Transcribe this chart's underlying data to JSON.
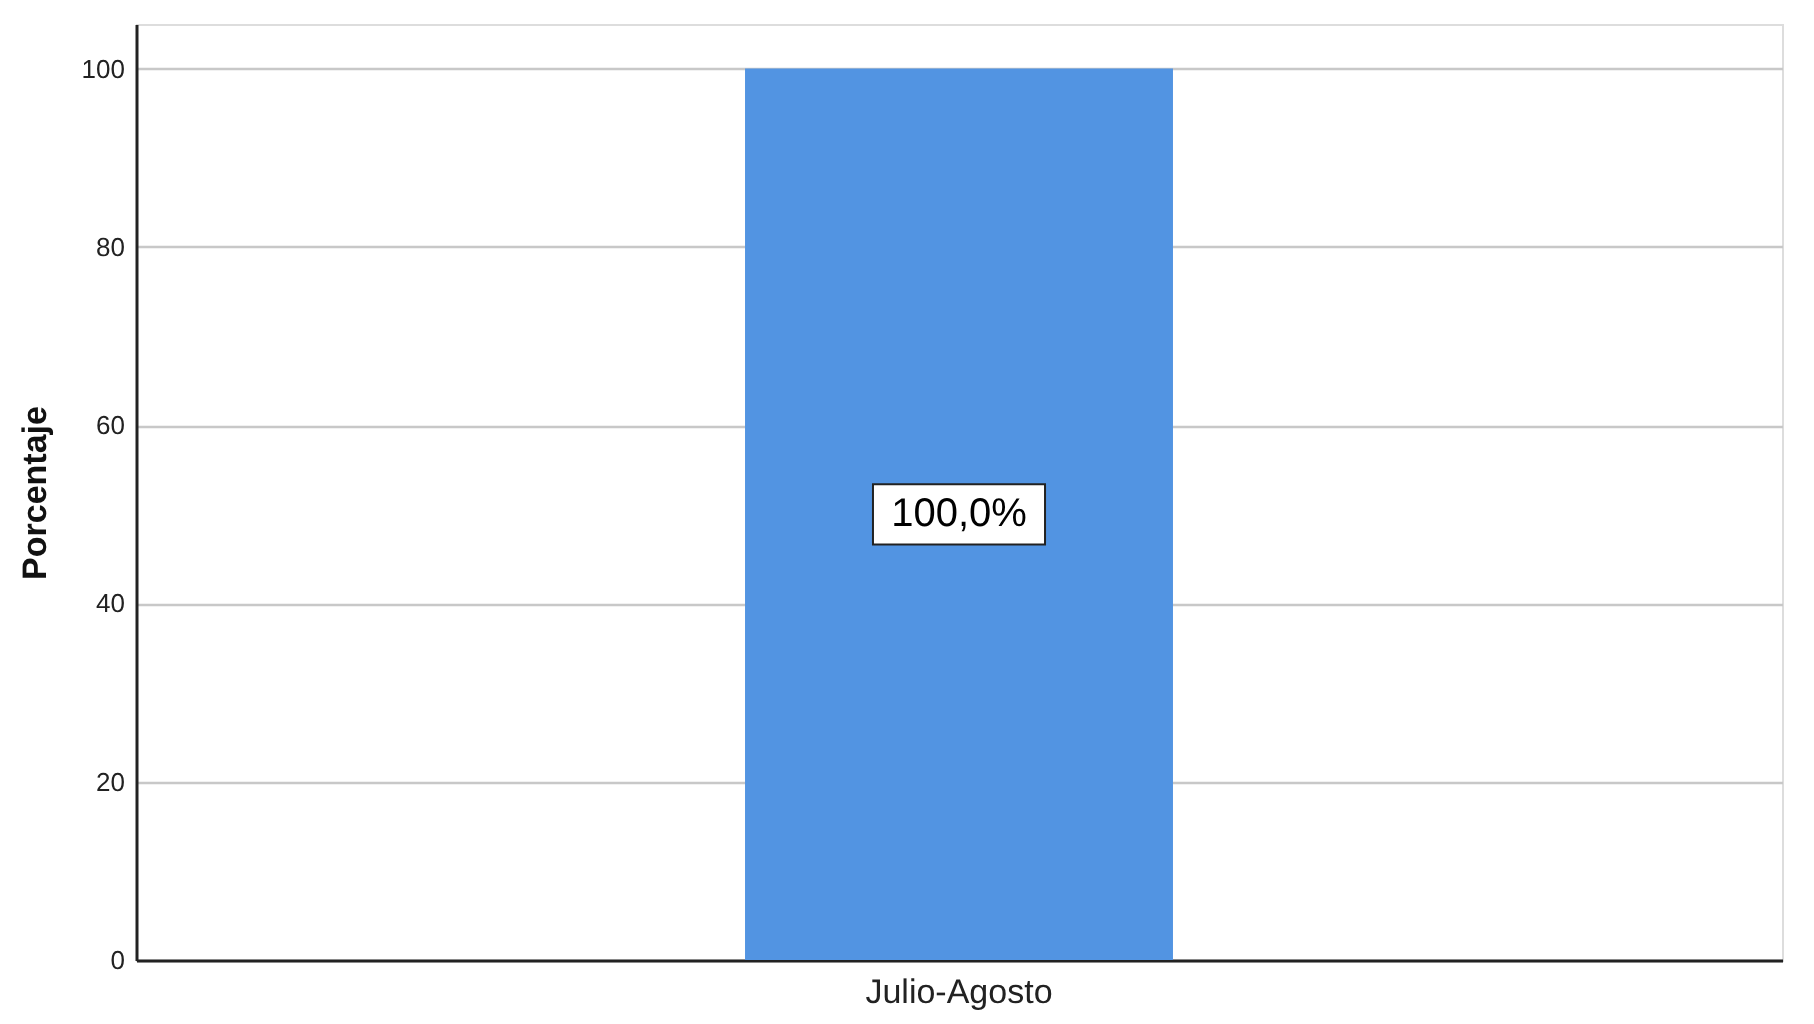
{
  "chart_data": {
    "type": "bar",
    "ylabel": "Porcentaje",
    "categories": [
      "Julio-Agosto"
    ],
    "values": [
      100
    ],
    "color": "#5294e2",
    "value_labels": [
      "100,0%"
    ],
    "ylim": [
      0,
      105
    ],
    "yticks": [
      0,
      20,
      40,
      60,
      80,
      100
    ],
    "grid": "y"
  }
}
